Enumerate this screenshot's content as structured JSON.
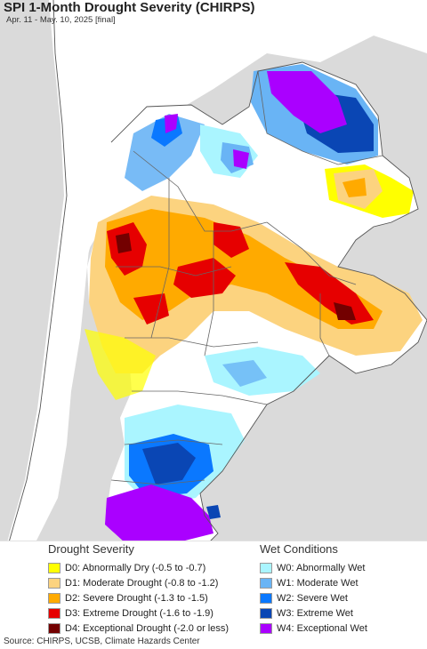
{
  "header": {
    "title": "SPI 1-Month Drought Severity (CHIRPS)",
    "subtitle": "Apr. 11 - May. 10, 2025 [final]"
  },
  "legend": {
    "drought": {
      "heading": "Drought Severity",
      "items": [
        {
          "label": "D0: Abnormally Dry (-0.5 to -0.7)",
          "color": "#ffff00"
        },
        {
          "label": "D1: Moderate Drought (-0.8 to -1.2)",
          "color": "#fcd37f"
        },
        {
          "label": "D2: Severe Drought (-1.3 to -1.5)",
          "color": "#ffaa00"
        },
        {
          "label": "D3: Extreme Drought (-1.6 to -1.9)",
          "color": "#e60000"
        },
        {
          "label": "D4: Exceptional Drought (-2.0 or less)",
          "color": "#730000"
        }
      ]
    },
    "wet": {
      "heading": "Wet Conditions",
      "items": [
        {
          "label": "W0: Abnormally Wet",
          "color": "#aaf5ff"
        },
        {
          "label": "W1: Moderate Wet",
          "color": "#69b4f5"
        },
        {
          "label": "W2: Severe Wet",
          "color": "#0a78ff"
        },
        {
          "label": "W3: Extreme Wet",
          "color": "#0a46b4"
        },
        {
          "label": "W4: Exceptional Wet",
          "color": "#aa00ff"
        }
      ]
    }
  },
  "map": {
    "ocean_color": "#dadada",
    "land_color": "#ffffff",
    "border_color": "#666666"
  },
  "source": "Source: CHIRPS, UCSB, Climate Hazards Center"
}
